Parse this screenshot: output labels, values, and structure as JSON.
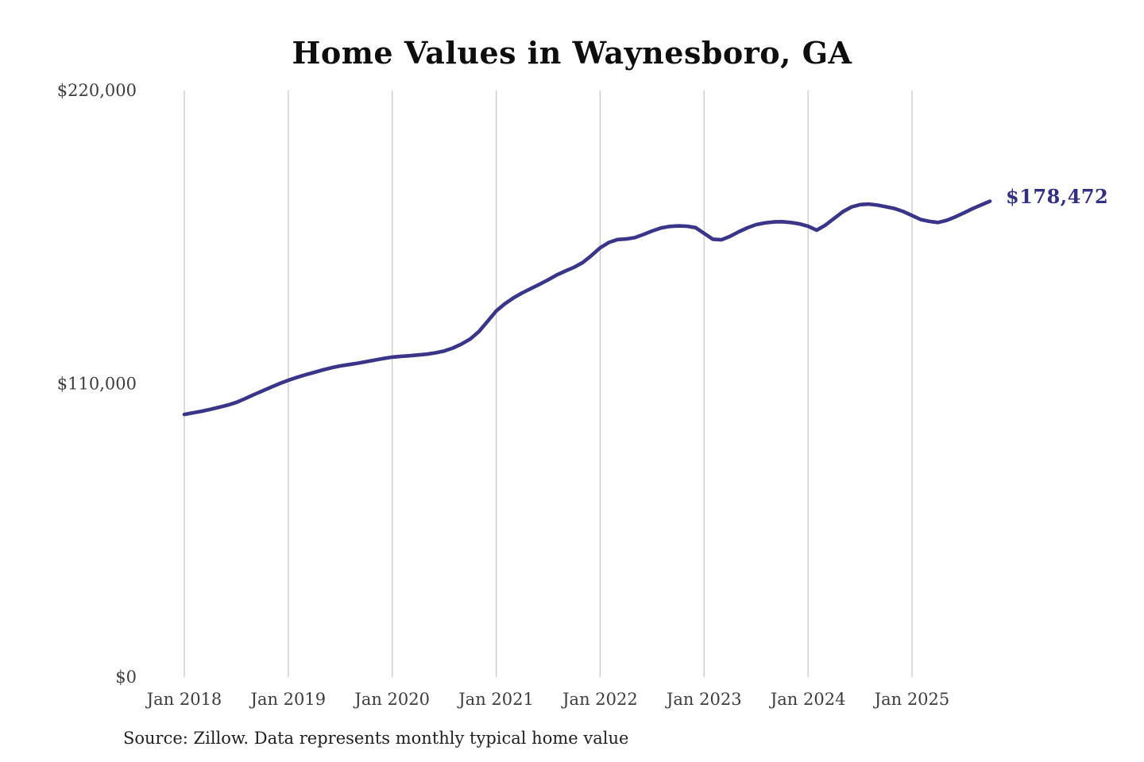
{
  "title": "Home Values in Waynesboro, GA",
  "source_note": "Source: Zillow. Data represents monthly typical home value",
  "end_annotation": "$178,472",
  "colors": {
    "line": "#3b3589",
    "annotation": "#32307f",
    "gridline": "#c9c9c9",
    "tick_label": "#3d3d3d",
    "title": "#0e0e0e",
    "source": "#1f1f1f",
    "background": "#ffffff"
  },
  "chart_data": {
    "type": "line",
    "title": "Home Values in Waynesboro, GA",
    "xlabel": "",
    "ylabel": "",
    "x_start_month": "Jan 2018",
    "x_end_month": "Oct 2025",
    "x_tick_labels": [
      "Jan 2018",
      "Jan 2019",
      "Jan 2020",
      "Jan 2021",
      "Jan 2022",
      "Jan 2023",
      "Jan 2024",
      "Jan 2025"
    ],
    "y_ticks": [
      {
        "label": "$0",
        "value": 0
      },
      {
        "label": "$110,000",
        "value": 110000
      },
      {
        "label": "$220,000",
        "value": 220000
      }
    ],
    "ylim": [
      0,
      220000
    ],
    "grid": "vertical-only",
    "legend": false,
    "end_annotation": "$178,472",
    "final_value": 178472,
    "series": [
      {
        "name": "Monthly typical home value",
        "start": "2018-01",
        "frequency": "monthly",
        "values": [
          98500,
          99100,
          99700,
          100400,
          101200,
          102000,
          103000,
          104400,
          105900,
          107300,
          108700,
          110100,
          111300,
          112400,
          113400,
          114300,
          115200,
          116000,
          116700,
          117200,
          117700,
          118300,
          118900,
          119500,
          120000,
          120300,
          120500,
          120800,
          121100,
          121600,
          122300,
          123400,
          124900,
          126800,
          129600,
          133400,
          137300,
          140000,
          142200,
          144100,
          145700,
          147300,
          149000,
          150800,
          152300,
          153700,
          155500,
          158100,
          161000,
          163000,
          164100,
          164300,
          164800,
          166000,
          167300,
          168400,
          169000,
          169200,
          169100,
          168600,
          166400,
          164200,
          164000,
          165300,
          167000,
          168500,
          169700,
          170300,
          170700,
          170800,
          170500,
          170000,
          169100,
          167600,
          169500,
          172000,
          174500,
          176300,
          177200,
          177400,
          177000,
          176400,
          175700,
          174600,
          173100,
          171600,
          170900,
          170500,
          171300,
          172600,
          174100,
          175700,
          177100,
          178472
        ]
      }
    ]
  },
  "layout_note": "vertical gridlines at each January; no horizontal gridlines; no axis lines"
}
